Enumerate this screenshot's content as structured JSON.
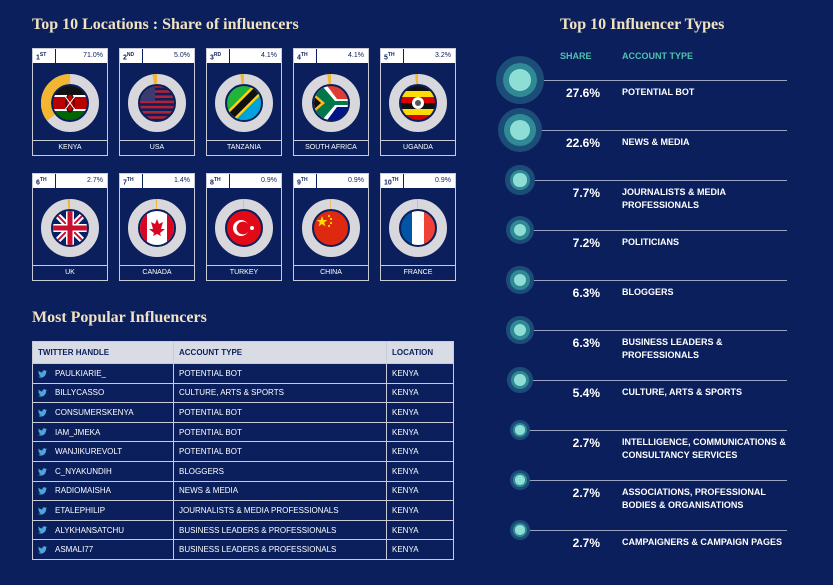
{
  "locations_title": "Top 10 Locations : Share of influencers",
  "types_title": "Top 10 Influencer Types",
  "popular_title": "Most Popular Influencers",
  "colors": {
    "background": "#0b1f5c",
    "accent": "#f2b632",
    "teal": "#4fc3b0",
    "ring": "#d7d7dc"
  },
  "chart_data": [
    {
      "type": "pie",
      "title": "Top 10 Locations : Share of influencers",
      "categories": [
        "KENYA",
        "USA",
        "TANZANIA",
        "SOUTH AFRICA",
        "UGANDA",
        "UK",
        "CANADA",
        "TURKEY",
        "CHINA",
        "FRANCE"
      ],
      "values": [
        71.0,
        5.0,
        4.1,
        4.1,
        3.2,
        2.7,
        1.4,
        0.9,
        0.9,
        0.9
      ],
      "ranks": [
        "1",
        "2",
        "3",
        "4",
        "5",
        "6",
        "7",
        "8",
        "9",
        "10"
      ],
      "rank_suffix": [
        "ST",
        "ND",
        "RD",
        "TH",
        "TH",
        "TH",
        "TH",
        "TH",
        "TH",
        "TH"
      ],
      "share_labels": [
        "71.0%",
        "5.0%",
        "4.1%",
        "4.1%",
        "3.2%",
        "2.7%",
        "1.4%",
        "0.9%",
        "0.9%",
        "0.9%"
      ],
      "flags": [
        "kenya-flag",
        "usa-flag",
        "tanzania-flag",
        "south-africa-flag",
        "uganda-flag",
        "uk-flag",
        "canada-flag",
        "turkey-flag",
        "china-flag",
        "france-flag"
      ]
    },
    {
      "type": "bar",
      "title": "Top 10 Influencer Types",
      "share_header": "SHARE",
      "type_header": "ACCOUNT TYPE",
      "categories": [
        "POTENTIAL BOT",
        "NEWS & MEDIA",
        "JOURNALISTS & MEDIA PROFESSIONALS",
        "POLITICIANS",
        "BLOGGERS",
        "BUSINESS LEADERS & PROFESSIONALS",
        "CULTURE, ARTS & SPORTS",
        "INTELLIGENCE, COMMUNICATIONS & CONSULTANCY SERVICES",
        "ASSOCIATIONS, PROFESSIONAL BODIES & ORGANISATIONS",
        "CAMPAIGNERS & CAMPAIGN PAGES"
      ],
      "values": [
        27.6,
        22.6,
        7.7,
        7.2,
        6.3,
        6.3,
        5.4,
        2.7,
        2.7,
        2.7
      ],
      "share_labels": [
        "27.6%",
        "22.6%",
        "7.7%",
        "7.2%",
        "6.3%",
        "6.3%",
        "5.4%",
        "2.7%",
        "2.7%",
        "2.7%"
      ]
    },
    {
      "type": "table",
      "title": "Most Popular Influencers",
      "columns": [
        "TWITTER HANDLE",
        "ACCOUNT TYPE",
        "LOCATION"
      ],
      "rows": [
        [
          "PAULKIARIE_",
          "POTENTIAL BOT",
          "KENYA"
        ],
        [
          "BILLYCASSO",
          "CULTURE, ARTS & SPORTS",
          "KENYA"
        ],
        [
          "CONSUMERSKENYA",
          "POTENTIAL BOT",
          "KENYA"
        ],
        [
          "IAM_JMEKA",
          "POTENTIAL BOT",
          "KENYA"
        ],
        [
          "WANJIKUREVOLT",
          "POTENTIAL BOT",
          "KENYA"
        ],
        [
          "C_NYAKUNDIH",
          "BLOGGERS",
          "KENYA"
        ],
        [
          "RADIOMAISHA",
          "NEWS & MEDIA",
          "KENYA"
        ],
        [
          "ETALEPHILIP",
          "JOURNALISTS & MEDIA PROFESSIONALS",
          "KENYA"
        ],
        [
          "ALYKHANSATCHU",
          "BUSINESS LEADERS & PROFESSIONALS",
          "KENYA"
        ],
        [
          "ASMALI77",
          "BUSINESS LEADERS & PROFESSIONALS",
          "KENYA"
        ]
      ]
    }
  ]
}
